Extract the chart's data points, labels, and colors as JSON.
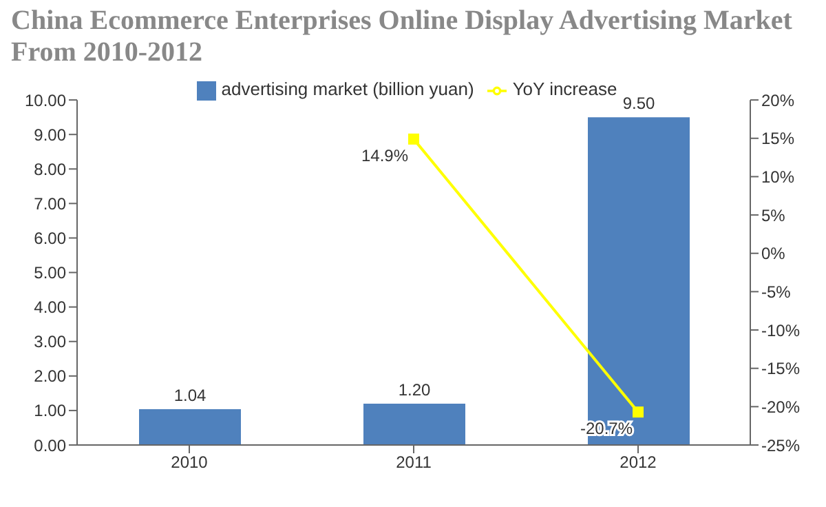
{
  "chart_data": {
    "type": "bar",
    "title": "China Ecommerce Enterprises Online Display Advertising Market From 2010-2012",
    "categories": [
      "2010",
      "2011",
      "2012"
    ],
    "series": [
      {
        "name": "advertising market (billion yuan)",
        "color": "#4f81bd",
        "values": [
          1.04,
          1.2,
          9.5
        ],
        "value_labels": [
          "1.04",
          "1.20",
          "9.50"
        ]
      },
      {
        "name": "YoY increase",
        "type": "line",
        "axis": "y2",
        "color": "#ffff00",
        "marker": "square",
        "values": [
          null,
          14.9,
          -20.7
        ],
        "value_labels": [
          null,
          "14.9%",
          "-20.7%"
        ]
      }
    ],
    "ylim": [
      0,
      10
    ],
    "yticks": [
      {
        "value": 0,
        "label": "0.00"
      },
      {
        "value": 1,
        "label": "1.00"
      },
      {
        "value": 2,
        "label": "2.00"
      },
      {
        "value": 3,
        "label": "3.00"
      },
      {
        "value": 4,
        "label": "4.00"
      },
      {
        "value": 5,
        "label": "5.00"
      },
      {
        "value": 6,
        "label": "6.00"
      },
      {
        "value": 7,
        "label": "7.00"
      },
      {
        "value": 8,
        "label": "8.00"
      },
      {
        "value": 9,
        "label": "9.00"
      },
      {
        "value": 10,
        "label": "10.00"
      }
    ],
    "y2lim": [
      -25,
      20
    ],
    "y2ticks": [
      {
        "value": -25,
        "label": "-25%"
      },
      {
        "value": -20,
        "label": "-20%"
      },
      {
        "value": -15,
        "label": "-15%"
      },
      {
        "value": -10,
        "label": "-10%"
      },
      {
        "value": -5,
        "label": "-5%"
      },
      {
        "value": 0,
        "label": "0%"
      },
      {
        "value": 5,
        "label": "5%"
      },
      {
        "value": 10,
        "label": "10%"
      },
      {
        "value": 15,
        "label": "15%"
      },
      {
        "value": 20,
        "label": "20%"
      }
    ],
    "legend": "top"
  }
}
